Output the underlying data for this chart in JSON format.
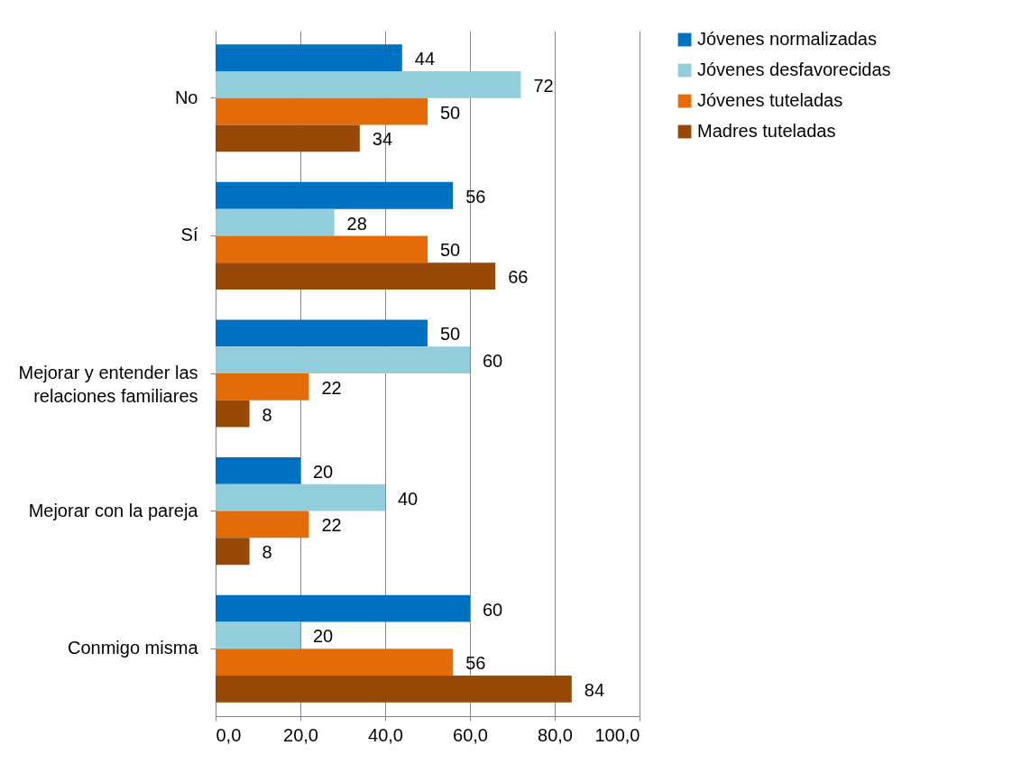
{
  "chart_data": {
    "type": "bar",
    "orientation": "horizontal",
    "categories": [
      "No",
      "Sí",
      "Mejorar y entender las relaciones familiares",
      "Mejorar con la pareja",
      "Conmigo misma"
    ],
    "series": [
      {
        "name": "Jóvenes normalizadas",
        "color": "#0070c0",
        "values": [
          44,
          56,
          50,
          20,
          60
        ]
      },
      {
        "name": "Jóvenes desfavorecidas",
        "color": "#92cddc",
        "values": [
          72,
          28,
          60,
          40,
          20
        ]
      },
      {
        "name": "Jóvenes tuteladas",
        "color": "#e36c09",
        "values": [
          50,
          50,
          22,
          22,
          56
        ]
      },
      {
        "name": "Madres tuteladas",
        "color": "#984807",
        "values": [
          34,
          66,
          8,
          8,
          84
        ]
      }
    ],
    "xlim": [
      0,
      100
    ],
    "xticks": [
      {
        "value": 0,
        "label": "0,0"
      },
      {
        "value": 20,
        "label": "20,0"
      },
      {
        "value": 40,
        "label": "40,0"
      },
      {
        "value": 60,
        "label": "60,0"
      },
      {
        "value": 80,
        "label": "80,0"
      },
      {
        "value": 100,
        "label": "100,0"
      }
    ],
    "grid": "x",
    "legend": "right",
    "data_labels": true
  }
}
